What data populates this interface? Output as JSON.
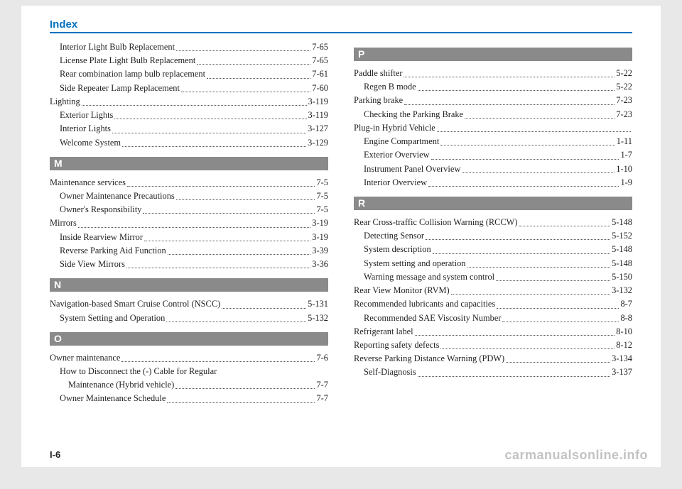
{
  "header": {
    "title": "Index"
  },
  "colors": {
    "accent": "#0070c0",
    "rule": "#0070c0",
    "section_bg": "#8a8a8a"
  },
  "page_number": "I-6",
  "watermark": "carmanualsonline.info",
  "left": {
    "top_entries": [
      {
        "label": "Interior Light Bulb Replacement",
        "page": "7-65",
        "indent": 1
      },
      {
        "label": "License Plate Light Bulb Replacement",
        "page": "7-65",
        "indent": 1
      },
      {
        "label": "Rear combination lamp bulb replacement",
        "page": "7-61",
        "indent": 1
      },
      {
        "label": "Side Repeater Lamp Replacement",
        "page": "7-60",
        "indent": 1
      },
      {
        "label": "Lighting",
        "page": "3-119",
        "indent": 0
      },
      {
        "label": "Exterior Lights",
        "page": "3-119",
        "indent": 1
      },
      {
        "label": "Interior Lights",
        "page": "3-127",
        "indent": 1
      },
      {
        "label": "Welcome System",
        "page": "3-129",
        "indent": 1
      }
    ],
    "sections": [
      {
        "letter": "M",
        "entries": [
          {
            "label": "Maintenance services",
            "page": "7-5",
            "indent": 0
          },
          {
            "label": "Owner Maintenance Precautions",
            "page": "7-5",
            "indent": 1
          },
          {
            "label": "Owner's Responsibility",
            "page": "7-5",
            "indent": 1
          },
          {
            "label": "Mirrors",
            "page": "3-19",
            "indent": 0
          },
          {
            "label": "Inside Rearview Mirror",
            "page": "3-19",
            "indent": 1
          },
          {
            "label": "Reverse Parking Aid Function ",
            "page": "3-39",
            "indent": 1
          },
          {
            "label": "Side View Mirrors  ",
            "page": "3-36",
            "indent": 1
          }
        ]
      },
      {
        "letter": "N",
        "entries": [
          {
            "label": "Navigation-based Smart Cruise Control (NSCC) ",
            "page": "5-131",
            "indent": 0
          },
          {
            "label": "System Setting and Operation",
            "page": "5-132",
            "indent": 1
          }
        ]
      },
      {
        "letter": "O",
        "entries": [
          {
            "label": "Owner maintenance",
            "page": "7-6",
            "indent": 0
          },
          {
            "label": "How to Disconnect the (-) Cable for Regular",
            "page": "",
            "indent": 1,
            "nopage": true
          },
          {
            "label": "Maintenance (Hybrid vehicle)",
            "page": "7-7",
            "indent": 2
          },
          {
            "label": "Owner Maintenance Schedule",
            "page": "7-7",
            "indent": 1
          }
        ]
      }
    ]
  },
  "right": {
    "sections": [
      {
        "letter": "P",
        "entries": [
          {
            "label": "Paddle shifter",
            "page": "5-22",
            "indent": 0
          },
          {
            "label": "Regen B mode",
            "page": "5-22",
            "indent": 1
          },
          {
            "label": "Parking brake",
            "page": "7-23",
            "indent": 0
          },
          {
            "label": "Checking the Parking Brake",
            "page": "7-23",
            "indent": 1
          },
          {
            "label": "Plug-in Hybrid Vehicle",
            "page": "",
            "indent": 0
          },
          {
            "label": "Engine Compartment",
            "page": "1-11",
            "indent": 1
          },
          {
            "label": "Exterior Overview",
            "page": "1-7",
            "indent": 1
          },
          {
            "label": "Instrument Panel Overview",
            "page": "1-10",
            "indent": 1
          },
          {
            "label": "Interior Overview",
            "page": "1-9",
            "indent": 1
          }
        ]
      },
      {
        "letter": "R",
        "entries": [
          {
            "label": "Rear Cross-traffic Collision Warning (RCCW)",
            "page": "5-148",
            "indent": 0
          },
          {
            "label": "Detecting Sensor",
            "page": "5-152",
            "indent": 1
          },
          {
            "label": "System description",
            "page": "5-148",
            "indent": 1
          },
          {
            "label": "System setting and operation",
            "page": "5-148",
            "indent": 1
          },
          {
            "label": "Warning message and system control",
            "page": "5-150",
            "indent": 1
          },
          {
            "label": "Rear View Monitor (RVM)",
            "page": "3-132",
            "indent": 0
          },
          {
            "label": "Recommended lubricants and capacities",
            "page": "8-7",
            "indent": 0
          },
          {
            "label": "Recommended SAE Viscosity Number",
            "page": "8-8",
            "indent": 1
          },
          {
            "label": "Refrigerant label",
            "page": "8-10",
            "indent": 0
          },
          {
            "label": "Reporting safety defects",
            "page": "8-12",
            "indent": 0
          },
          {
            "label": "Reverse Parking Distance Warning (PDW)",
            "page": "3-134",
            "indent": 0
          },
          {
            "label": "Self-Diagnosis",
            "page": "3-137",
            "indent": 1
          }
        ]
      }
    ]
  }
}
